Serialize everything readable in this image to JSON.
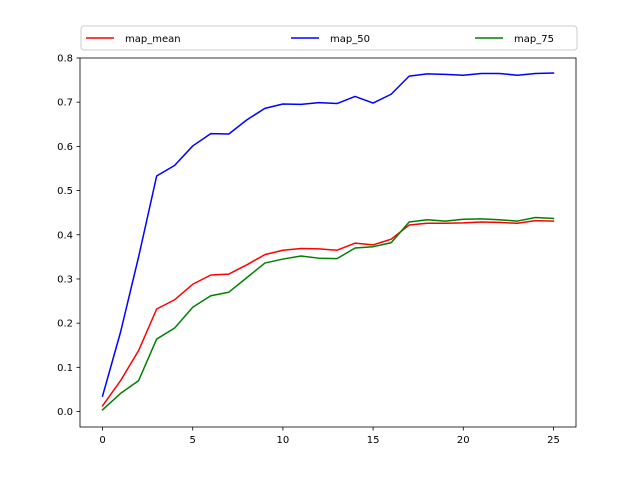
{
  "chart_data": {
    "type": "line",
    "title": "",
    "xlabel": "",
    "ylabel": "",
    "xlim": [
      -1.25,
      26.25
    ],
    "ylim": [
      -0.035,
      0.8
    ],
    "x_ticks": [
      0,
      5,
      10,
      15,
      20,
      25
    ],
    "y_ticks": [
      0.0,
      0.1,
      0.2,
      0.3,
      0.4,
      0.5,
      0.6,
      0.7,
      0.8
    ],
    "grid": false,
    "legend_position": "top",
    "x": [
      0,
      1,
      2,
      3,
      4,
      5,
      6,
      7,
      8,
      9,
      10,
      11,
      12,
      13,
      14,
      15,
      16,
      17,
      18,
      19,
      20,
      21,
      22,
      23,
      24,
      25
    ],
    "series": [
      {
        "name": "map_mean",
        "color": "#ff0000",
        "values": [
          0.013,
          0.07,
          0.138,
          0.232,
          0.253,
          0.288,
          0.309,
          0.311,
          0.332,
          0.355,
          0.365,
          0.369,
          0.368,
          0.365,
          0.381,
          0.377,
          0.39,
          0.422,
          0.426,
          0.426,
          0.427,
          0.429,
          0.428,
          0.426,
          0.432,
          0.431
        ]
      },
      {
        "name": "map_50",
        "color": "#0000ff",
        "values": [
          0.035,
          0.18,
          0.35,
          0.533,
          0.557,
          0.601,
          0.629,
          0.628,
          0.66,
          0.686,
          0.696,
          0.695,
          0.699,
          0.697,
          0.713,
          0.698,
          0.718,
          0.759,
          0.764,
          0.763,
          0.761,
          0.765,
          0.765,
          0.761,
          0.765,
          0.766
        ]
      },
      {
        "name": "map_75",
        "color": "#008000",
        "values": [
          0.004,
          0.041,
          0.07,
          0.164,
          0.189,
          0.236,
          0.262,
          0.27,
          0.303,
          0.336,
          0.345,
          0.352,
          0.347,
          0.346,
          0.37,
          0.373,
          0.382,
          0.429,
          0.434,
          0.431,
          0.435,
          0.436,
          0.434,
          0.431,
          0.439,
          0.437
        ]
      }
    ]
  }
}
